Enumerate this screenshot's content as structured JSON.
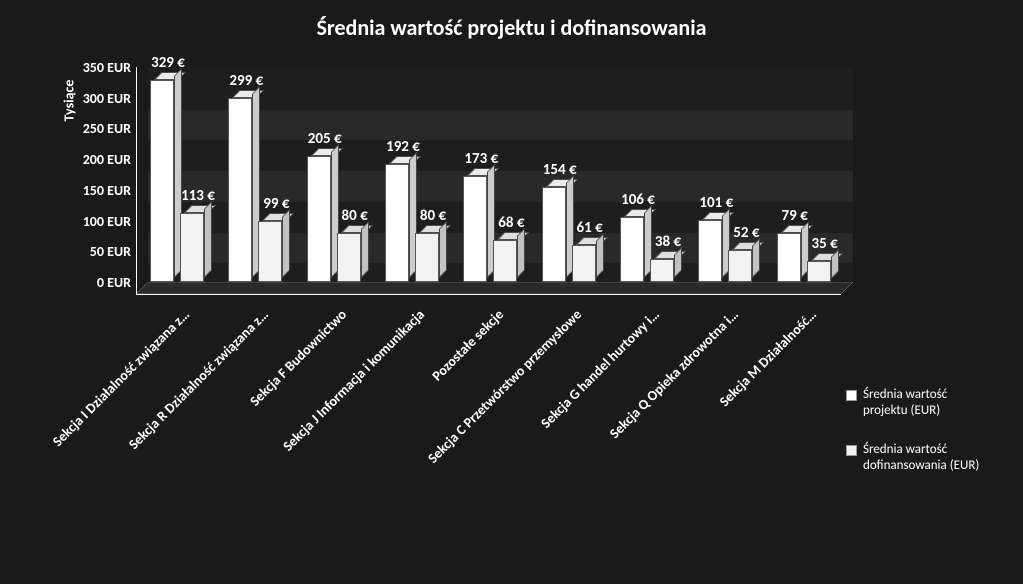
{
  "chart": {
    "type": "bar",
    "title": "Średnia wartość projektu i dofinansowania",
    "background_color": "#1a1a1a",
    "text_color": "#ffffff",
    "title_fontsize": 22,
    "label_fontsize": 14,
    "data_label_fontsize": 15,
    "bar_color_series1": "#ffffff",
    "bar_color_series2": "#f2f2f2",
    "bar_border_color": "#555555",
    "y_axis_label": "Tysiące",
    "ylim": [
      0,
      350
    ],
    "ytick_step": 50,
    "yticks": [
      "0 EUR",
      "50 EUR",
      "100 EUR",
      "150 EUR",
      "200 EUR",
      "250 EUR",
      "300 EUR",
      "350 EUR"
    ],
    "categories": [
      "Sekcja I Działalność związana z…",
      "Sekcja R Działalność związana z…",
      "Sekcja F Budownictwo",
      "Sekcja J Informacja i komunikacja",
      "Pozostałe sekcje",
      "Sekcja C Przetwórstwo przemysłowe",
      "Sekcja G handel hurtowy i…",
      "Sekcja Q Opieka zdrowotna i…",
      "Sekcja M Działalność…"
    ],
    "series": [
      {
        "name": "Średnia wartość projektu (EUR)",
        "values": [
          329,
          299,
          205,
          192,
          173,
          154,
          106,
          101,
          79
        ],
        "color": "#ffffff"
      },
      {
        "name": "Średnia wartość dofinansowania (EUR)",
        "values": [
          113,
          99,
          80,
          80,
          68,
          61,
          38,
          52,
          35
        ],
        "color": "#f2f2f2"
      }
    ],
    "currency_suffix": " €"
  }
}
